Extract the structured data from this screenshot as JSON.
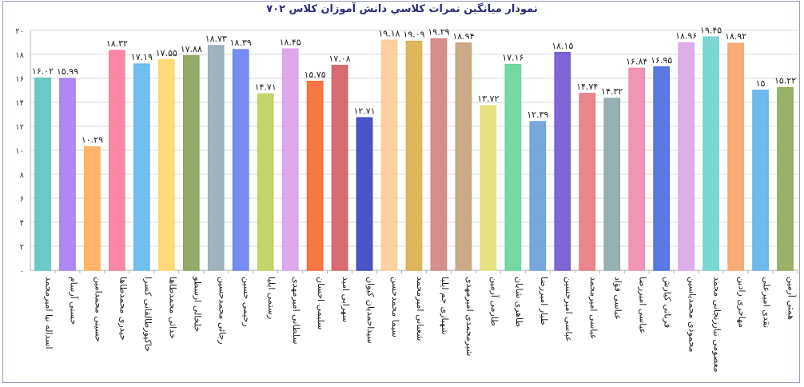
{
  "chart_data": {
    "type": "bar",
    "title": "نمودار میانگین نمرات کلاسي دانش آموزان کلاس ۷۰۲",
    "xlabel": "",
    "ylabel": "",
    "ylim": [
      0,
      20
    ],
    "yticks": [
      "۰",
      "۲",
      "۴",
      "۶",
      "۸",
      "۱۰",
      "۱۲",
      "۱۴",
      "۱۶",
      "۱۸",
      "۲۰"
    ],
    "grid": true,
    "legend": "none",
    "categories": [
      "اسداله نیا امیرمحمد",
      "حسنی آرسام",
      "حسینی محمدامین",
      "حیدری محمدطاها",
      "خاکپورطالقانی کسرا",
      "خدائی محمدطاها",
      "خلخالی ارسطو",
      "رجائی محمدحسین",
      "رحیمی حسین",
      "رستمی ایلیا",
      "سلطانی امیرمهدی",
      "سلیمی احسان",
      "سهرابی امید",
      "سیداحمدیان کیوان",
      "سیما محمدحسن",
      "شعبانی امیرمحمد",
      "شهبازی جم ایلیا",
      "شیرمحمدی امیرمهدی",
      "طارمی آرمین",
      "طاهری شایان",
      "طیار امیررضا",
      "عباسی امیرحسین",
      "عباسی امیرمحمد",
      "عباسی فؤاد",
      "عباسی امیررضا",
      "قربانی کیارش",
      "محمودی محمدیاسین",
      "معصومی تبارزنجانی محمد",
      "مهاجری رادین",
      "نقدی امیرعلی",
      "همتی آرمین"
    ],
    "values": [
      16.02,
      15.99,
      10.29,
      18.32,
      17.19,
      17.55,
      17.88,
      18.73,
      18.39,
      14.71,
      18.45,
      15.75,
      17.08,
      12.71,
      19.18,
      19.09,
      19.29,
      18.94,
      13.72,
      17.16,
      12.39,
      18.15,
      14.74,
      14.32,
      16.84,
      16.95,
      18.96,
      19.45,
      18.92,
      15.0,
      15.22
    ],
    "data_labels": [
      "۱۶.۰۲",
      "۱۵.۹۹",
      "۱۰.۲۹",
      "۱۸.۳۲",
      "۱۷.۱۹",
      "۱۷.۵۵",
      "۱۷.۸۸",
      "۱۸.۷۳",
      "۱۸.۳۹",
      "۱۴.۷۱",
      "۱۸.۴۵",
      "۱۵.۷۵",
      "۱۷.۰۸",
      "۱۲.۷۱",
      "۱۹.۱۸",
      "۱۹.۰۹",
      "۱۹.۲۹",
      "۱۸.۹۴",
      "۱۳.۷۲",
      "۱۷.۱۶",
      "۱۲.۳۹",
      "۱۸.۱۵",
      "۱۴.۷۴",
      "۱۴.۳۲",
      "۱۶.۸۴",
      "۱۶.۹۵",
      "۱۸.۹۶",
      "۱۹.۴۵",
      "۱۸.۹۲",
      "۱۵",
      "۱۵.۲۲"
    ],
    "colors": [
      "#5ec4c4",
      "#a77ef4",
      "#ffae5c",
      "#fb7e9c",
      "#66b8ef",
      "#ffd770",
      "#8aa55a",
      "#95aeb6",
      "#6b82f2",
      "#bfd25e",
      "#dda1ea",
      "#fa6a34",
      "#d56066",
      "#3a48c4",
      "#ffcc98",
      "#dcaf4f",
      "#d18585",
      "#c4a47e",
      "#e4e078",
      "#69d699",
      "#6c9fd9",
      "#7459d2",
      "#ea7b82",
      "#8ea9ad",
      "#f08bb0",
      "#4d6ee2",
      "#dda6ea",
      "#6fd5cf",
      "#f8a56d",
      "#62b3ec",
      "#8fac5a"
    ]
  }
}
